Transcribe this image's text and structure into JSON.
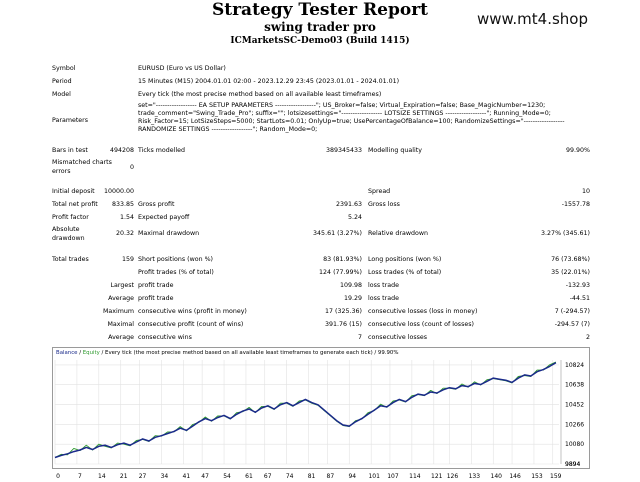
{
  "header": {
    "title": "Strategy Tester Report",
    "subtitle": "swing trader pro",
    "build": "ICMarketsSC-Demo03 (Build 1415)",
    "watermark": "www.mt4.shop"
  },
  "settings": {
    "symbol_label": "Symbol",
    "symbol_value": "EURUSD (Euro vs US Dollar)",
    "period_label": "Period",
    "period_value": "15 Minutes (M15) 2004.01.01 02:00 - 2023.12.29 23:45 (2023.01.01 - 2024.01.01)",
    "model_label": "Model",
    "model_value": "Every tick (the most precise method based on all available least timeframes)",
    "parameters_label": "Parameters",
    "parameters_value": "set=\"------------------ EA SETUP PARAMETERS ------------------\"; US_Broker=false; Virtual_Expiration=false; Base_MagicNumber=1230; trade_comment=\"Swing_Trade_Pro\"; suffix=\"\"; lotsizesettings=\"------------------ LOTSIZE SETTINGS ------------------\"; Running_Mode=0; Risk_Factor=15; LotSizeSteps=5000; StartLots=0.01; OnlyUp=true; UsePercentageOfBalance=100; RandomizeSettings=\"------------------ RANDOMIZE SETTINGS ------------------\"; Random_Mode=0;"
  },
  "stats": {
    "bars_label": "Bars in test",
    "bars_value": "494208",
    "ticks_label": "Ticks modelled",
    "ticks_value": "389345433",
    "quality_label": "Modelling quality",
    "quality_value": "99.90%",
    "mismatch_label": "Mismatched charts errors",
    "mismatch_value": "0",
    "deposit_label": "Initial deposit",
    "deposit_value": "10000.00",
    "spread_label": "Spread",
    "spread_value": "10",
    "netprofit_label": "Total net profit",
    "netprofit_value": "833.85",
    "grossprofit_label": "Gross profit",
    "grossprofit_value": "2391.63",
    "grossloss_label": "Gross loss",
    "grossloss_value": "-1557.78",
    "pf_label": "Profit factor",
    "pf_value": "1.54",
    "payoff_label": "Expected payoff",
    "payoff_value": "5.24",
    "absdd_label": "Absolute drawdown",
    "absdd_value": "20.32",
    "maxdd_label": "Maximal drawdown",
    "maxdd_value": "345.61 (3.27%)",
    "reldd_label": "Relative drawdown",
    "reldd_value": "3.27% (345.61)",
    "trades_label": "Total trades",
    "trades_value": "159",
    "short_label": "Short positions (won %)",
    "short_value": "83 (81.93%)",
    "long_label": "Long positions (won %)",
    "long_value": "76 (73.68%)",
    "profit_trades_label": "Profit trades (% of total)",
    "profit_trades_value": "124 (77.99%)",
    "loss_trades_label": "Loss trades (% of total)",
    "loss_trades_value": "35 (22.01%)",
    "largest_label": "Largest",
    "largest_profit_label": "profit trade",
    "largest_profit_value": "109.98",
    "largest_loss_label": "loss trade",
    "largest_loss_value": "-132.93",
    "average_label": "Average",
    "average_profit_label": "profit trade",
    "average_profit_value": "19.29",
    "average_loss_label": "loss trade",
    "average_loss_value": "-44.51",
    "maximum_label": "Maximum",
    "max_wins_label": "consecutive wins (profit in money)",
    "max_wins_value": "17 (325.36)",
    "max_losses_label": "consecutive losses (loss in money)",
    "max_losses_value": "7 (-294.57)",
    "maximal_label": "Maximal",
    "maximal_profit_label": "consecutive profit (count of wins)",
    "maximal_profit_value": "391.76 (15)",
    "maximal_loss_label": "consecutive loss (count of losses)",
    "maximal_loss_value": "-294.57 (7)",
    "avg_label": "Average",
    "avg_wins_label": "consecutive wins",
    "avg_wins_value": "7",
    "avg_losses_label": "consecutive losses",
    "avg_losses_value": "2"
  },
  "chart_legend": {
    "balance": "Balance",
    "sep": " / ",
    "equity": "Equity",
    "rest": " / Every tick (the most precise method based on all available least timeframes to generate each tick) / 99.90%"
  },
  "chart_data": {
    "type": "line",
    "x_ticks": [
      0,
      7,
      14,
      21,
      27,
      34,
      41,
      47,
      54,
      61,
      67,
      74,
      81,
      87,
      94,
      101,
      107,
      114,
      121,
      126,
      133,
      140,
      146,
      153,
      159
    ],
    "y_ticks": [
      9894,
      10080,
      10266,
      10452,
      10638,
      10824
    ],
    "ylim": [
      9894,
      10870
    ],
    "xlim": [
      0,
      161
    ],
    "series": [
      {
        "name": "Balance",
        "color": "#1a2a8a",
        "points": [
          [
            0,
            9955
          ],
          [
            2,
            9975
          ],
          [
            4,
            9990
          ],
          [
            6,
            10010
          ],
          [
            8,
            10025
          ],
          [
            10,
            10050
          ],
          [
            12,
            10030
          ],
          [
            14,
            10060
          ],
          [
            16,
            10070
          ],
          [
            18,
            10050
          ],
          [
            20,
            10075
          ],
          [
            22,
            10090
          ],
          [
            24,
            10070
          ],
          [
            26,
            10100
          ],
          [
            28,
            10130
          ],
          [
            30,
            10110
          ],
          [
            32,
            10145
          ],
          [
            34,
            10160
          ],
          [
            36,
            10180
          ],
          [
            38,
            10200
          ],
          [
            40,
            10230
          ],
          [
            42,
            10210
          ],
          [
            44,
            10250
          ],
          [
            46,
            10290
          ],
          [
            48,
            10320
          ],
          [
            50,
            10300
          ],
          [
            52,
            10330
          ],
          [
            54,
            10350
          ],
          [
            56,
            10320
          ],
          [
            58,
            10360
          ],
          [
            60,
            10390
          ],
          [
            62,
            10410
          ],
          [
            64,
            10380
          ],
          [
            66,
            10420
          ],
          [
            68,
            10440
          ],
          [
            70,
            10410
          ],
          [
            72,
            10450
          ],
          [
            74,
            10470
          ],
          [
            76,
            10440
          ],
          [
            78,
            10470
          ],
          [
            80,
            10500
          ],
          [
            82,
            10470
          ],
          [
            84,
            10450
          ],
          [
            86,
            10400
          ],
          [
            88,
            10350
          ],
          [
            90,
            10300
          ],
          [
            92,
            10260
          ],
          [
            94,
            10250
          ],
          [
            96,
            10290
          ],
          [
            98,
            10320
          ],
          [
            100,
            10360
          ],
          [
            102,
            10400
          ],
          [
            104,
            10440
          ],
          [
            106,
            10430
          ],
          [
            108,
            10470
          ],
          [
            110,
            10500
          ],
          [
            112,
            10480
          ],
          [
            114,
            10520
          ],
          [
            116,
            10550
          ],
          [
            118,
            10540
          ],
          [
            120,
            10570
          ],
          [
            122,
            10560
          ],
          [
            124,
            10590
          ],
          [
            126,
            10610
          ],
          [
            128,
            10600
          ],
          [
            130,
            10630
          ],
          [
            132,
            10620
          ],
          [
            134,
            10650
          ],
          [
            136,
            10640
          ],
          [
            138,
            10670
          ],
          [
            140,
            10700
          ],
          [
            142,
            10690
          ],
          [
            144,
            10680
          ],
          [
            146,
            10660
          ],
          [
            148,
            10700
          ],
          [
            150,
            10730
          ],
          [
            152,
            10720
          ],
          [
            154,
            10760
          ],
          [
            156,
            10780
          ],
          [
            158,
            10810
          ],
          [
            160,
            10845
          ]
        ]
      },
      {
        "name": "Equity",
        "color": "#2e9a2e",
        "points": [
          [
            0,
            9955
          ],
          [
            2,
            9985
          ],
          [
            4,
            9980
          ],
          [
            6,
            10040
          ],
          [
            8,
            10020
          ],
          [
            10,
            10070
          ],
          [
            12,
            10025
          ],
          [
            14,
            10080
          ],
          [
            16,
            10060
          ],
          [
            18,
            10045
          ],
          [
            20,
            10090
          ],
          [
            22,
            10080
          ],
          [
            24,
            10065
          ],
          [
            26,
            10115
          ],
          [
            28,
            10125
          ],
          [
            30,
            10105
          ],
          [
            32,
            10160
          ],
          [
            34,
            10155
          ],
          [
            36,
            10195
          ],
          [
            38,
            10195
          ],
          [
            40,
            10245
          ],
          [
            42,
            10205
          ],
          [
            44,
            10265
          ],
          [
            46,
            10285
          ],
          [
            48,
            10335
          ],
          [
            50,
            10295
          ],
          [
            52,
            10345
          ],
          [
            54,
            10345
          ],
          [
            56,
            10315
          ],
          [
            58,
            10375
          ],
          [
            60,
            10385
          ],
          [
            62,
            10425
          ],
          [
            64,
            10375
          ],
          [
            66,
            10435
          ],
          [
            68,
            10435
          ],
          [
            70,
            10405
          ],
          [
            72,
            10465
          ],
          [
            74,
            10465
          ],
          [
            76,
            10435
          ],
          [
            78,
            10485
          ],
          [
            80,
            10495
          ],
          [
            82,
            10465
          ],
          [
            84,
            10445
          ],
          [
            86,
            10395
          ],
          [
            88,
            10345
          ],
          [
            90,
            10295
          ],
          [
            92,
            10255
          ],
          [
            94,
            10245
          ],
          [
            96,
            10300
          ],
          [
            98,
            10315
          ],
          [
            100,
            10375
          ],
          [
            102,
            10395
          ],
          [
            104,
            10455
          ],
          [
            106,
            10425
          ],
          [
            108,
            10485
          ],
          [
            110,
            10495
          ],
          [
            112,
            10475
          ],
          [
            114,
            10535
          ],
          [
            116,
            10545
          ],
          [
            118,
            10535
          ],
          [
            120,
            10585
          ],
          [
            122,
            10555
          ],
          [
            124,
            10605
          ],
          [
            126,
            10605
          ],
          [
            128,
            10595
          ],
          [
            130,
            10645
          ],
          [
            132,
            10615
          ],
          [
            134,
            10665
          ],
          [
            136,
            10635
          ],
          [
            138,
            10685
          ],
          [
            140,
            10695
          ],
          [
            142,
            10685
          ],
          [
            144,
            10675
          ],
          [
            146,
            10655
          ],
          [
            148,
            10715
          ],
          [
            150,
            10725
          ],
          [
            152,
            10715
          ],
          [
            154,
            10775
          ],
          [
            156,
            10775
          ],
          [
            158,
            10825
          ],
          [
            160,
            10850
          ]
        ]
      }
    ]
  }
}
